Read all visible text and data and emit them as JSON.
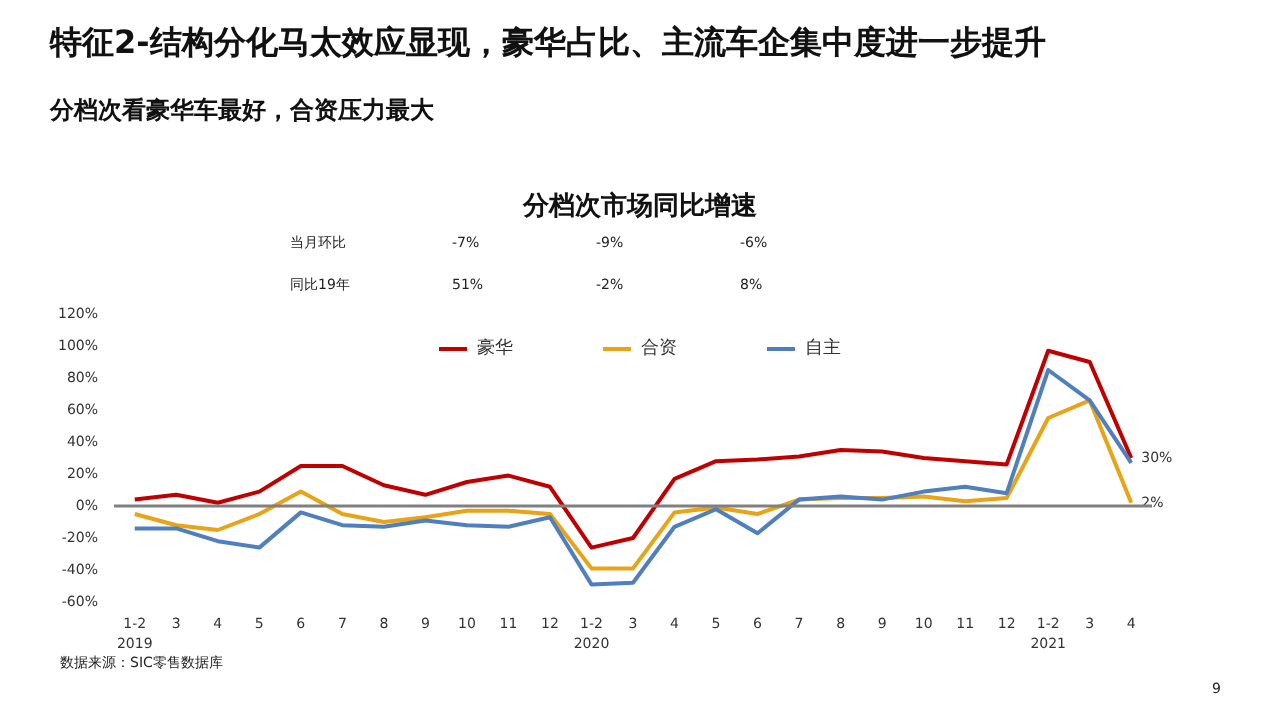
{
  "chart_data": {
    "type": "line",
    "title": "特征2-结构分化马太效应显现，豪华占比、主流车企集中度进一步提升",
    "subtitle": "分档次看豪华车最好，合资压力最大",
    "annotations": [
      "分档次市场同比增速",
      "当月环比",
      "-7%",
      "-9%",
      "-6%",
      "同比19年",
      "51%",
      "-2%",
      "8%",
      "数据来源：SIC零售数据库",
      "9"
    ],
    "categories": [
      "1-2\n2019",
      "3",
      "4",
      "5",
      "6",
      "7",
      "8",
      "9",
      "10",
      "11",
      "12",
      "1-2\n2020",
      "3",
      "4",
      "5",
      "6",
      "7",
      "8",
      "9",
      "10",
      "11",
      "12",
      "1-2\n2021",
      "3",
      "4"
    ],
    "series": [
      {
        "name": "豪华",
        "color": "#c00000",
        "values": [
          4,
          7,
          2,
          9,
          25,
          25,
          13,
          7,
          15,
          19,
          12,
          -26,
          -20,
          17,
          28,
          29,
          31,
          35,
          34,
          30,
          28,
          26,
          97,
          90,
          30
        ],
        "value_labels": [
          null,
          null,
          null,
          null,
          null,
          null,
          null,
          null,
          null,
          null,
          null,
          null,
          null,
          null,
          null,
          null,
          null,
          null,
          null,
          null,
          null,
          null,
          null,
          null,
          "30%"
        ]
      },
      {
        "name": "合资",
        "color": "#e8a317",
        "values": [
          -5,
          -12,
          -15,
          -5,
          9,
          -5,
          -10,
          -7,
          -3,
          -3,
          -5,
          -39,
          -39,
          -4,
          -1,
          -5,
          4,
          5,
          5,
          6,
          3,
          5,
          55,
          66,
          2
        ],
        "value_labels": [
          null,
          null,
          null,
          null,
          null,
          null,
          null,
          null,
          null,
          null,
          null,
          null,
          null,
          null,
          null,
          null,
          null,
          null,
          null,
          null,
          null,
          null,
          null,
          null,
          "2%"
        ]
      },
      {
        "name": "自主",
        "color": "#4f7fbf",
        "values": [
          -14,
          -14,
          -22,
          -26,
          -4,
          -12,
          -13,
          -9,
          -12,
          -13,
          -7,
          -49,
          -48,
          -13,
          -2,
          -17,
          4,
          6,
          4,
          9,
          12,
          8,
          85,
          66,
          27
        ]
      }
    ],
    "ylim": [
      -60,
      120
    ],
    "yticks": [
      {
        "value": -60,
        "label": "-60%"
      },
      {
        "value": -40,
        "label": "-40%"
      },
      {
        "value": -20,
        "label": "-20%"
      },
      {
        "value": 0,
        "label": "0%"
      },
      {
        "value": 20,
        "label": "20%"
      },
      {
        "value": 40,
        "label": "40%"
      },
      {
        "value": 60,
        "label": "60%"
      },
      {
        "value": 80,
        "label": "80%"
      },
      {
        "value": 100,
        "label": "100%"
      },
      {
        "value": 120,
        "label": "120%"
      }
    ],
    "ref_lines": [
      {
        "axis": "y",
        "value": 0,
        "color": "#808080"
      }
    ],
    "legend": "top",
    "grid": false,
    "marker": "none",
    "line_style": "solid"
  }
}
